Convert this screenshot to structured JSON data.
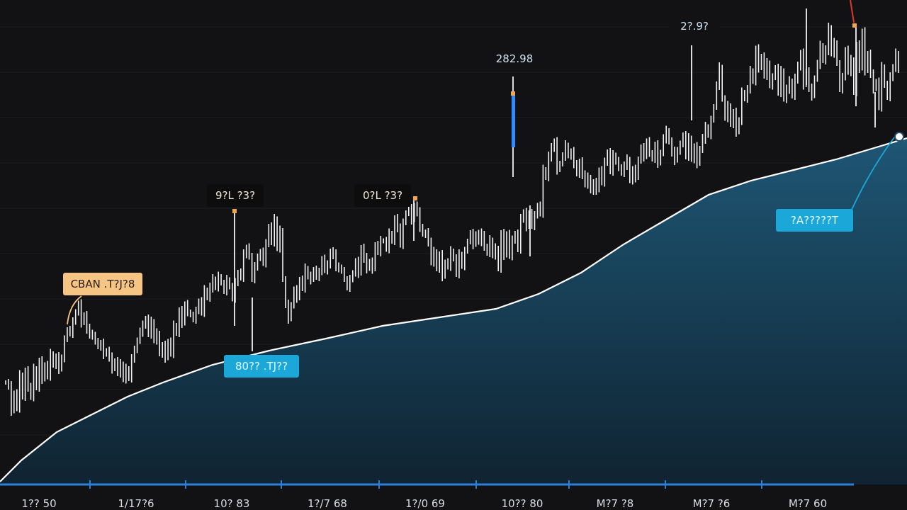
{
  "chart_data": {
    "type": "line",
    "title": "",
    "xlabel": "",
    "ylabel": "",
    "grid": true,
    "x_tick_labels": [
      "1?? 50",
      "1/17?6",
      "10? 83",
      "1?/7 68",
      "1?/0 69",
      "10?? 80",
      "M?7 ?8",
      "M?7 ?6",
      "M?7 60"
    ],
    "series": [
      {
        "role": "price-ticks",
        "color": "#f2f2f2",
        "values": [
          540,
          545,
          580,
          555,
          575,
          530,
          560,
          525,
          545,
          560,
          520,
          548,
          510,
          535,
          515,
          530,
          500,
          515,
          505,
          520,
          505,
          480,
          465,
          470,
          455,
          440,
          430,
          455,
          445,
          465,
          470,
          475,
          480,
          490,
          485,
          500,
          495,
          505,
          520,
          510,
          525,
          515,
          535,
          520,
          535,
          505,
          495,
          480,
          468,
          460,
          450,
          470,
          455,
          480,
          470,
          500,
          488,
          505,
          482,
          498,
          460,
          470,
          440,
          455,
          430,
          440,
          445,
          450,
          440,
          425,
          440,
          410,
          420,
          405,
          395,
          405,
          390,
          400,
          410,
          395,
          405,
          420,
          400,
          385,
          390,
          360,
          350,
          360,
          395,
          375,
          365,
          355,
          370,
          345,
          320,
          340,
          310,
          350,
          325,
          395,
          430,
          450,
          430,
          410,
          420,
          395,
          405,
          380,
          390,
          395,
          380,
          390,
          385,
          365,
          380,
          375,
          355,
          360,
          375,
          380,
          380,
          395,
          405,
          395,
          385,
          370,
          385,
          350,
          365,
          378,
          370,
          380,
          345,
          355,
          340,
          340,
          350,
          330,
          340,
          310,
          320,
          345,
          315,
          300,
          295,
          310,
          290,
          300,
          320,
          330,
          330,
          340,
          370,
          355,
          380,
          360,
          390,
          370,
          375,
          355,
          365,
          385,
          360,
          375,
          355,
          340,
          330,
          345,
          330,
          340,
          330,
          350,
          355,
          340,
          360,
          350,
          380,
          330,
          360,
          330,
          360,
          340,
          330,
          350,
          310,
          300,
          320,
          300,
          318,
          305,
          290,
          300,
          240,
          250,
          220,
          210,
          200,
          240,
          230,
          220,
          205,
          220,
          215,
          230,
          245,
          230,
          245,
          260,
          250,
          270,
          258,
          268,
          240,
          256,
          230,
          215,
          240,
          220,
          228,
          235,
          245,
          233,
          225,
          255,
          240,
          250,
          225,
          210,
          220,
          200,
          215,
          225,
          205,
          230,
          215,
          195,
          185,
          200,
          215,
          225,
          212,
          205,
          190,
          220,
          195,
          225,
          208,
          230,
          210,
          195,
          180,
          190,
          170,
          150,
          120,
          95,
          140,
          165,
          150,
          175,
          160,
          185,
          170,
          130,
          140,
          125,
          100,
          115,
          70,
          95,
          80,
          105,
          90,
          120,
          110,
          95,
          130,
          100,
          140,
          125,
          115,
          135,
          110,
          95,
          75,
          120,
          100,
          125,
          135,
          110,
          90,
          65,
          85,
          70,
          40,
          75,
          60,
          90,
          125,
          110,
          70,
          100,
          85,
          130,
          65,
          95,
          45,
          100,
          75,
          105,
          125,
          115,
          150,
          95,
          120,
          135,
          110,
          95,
          75,
          100
        ]
      },
      {
        "role": "moving-average",
        "color": "#ffffff",
        "fill": "#1b4e6b",
        "x": [
          0,
          30,
          80,
          130,
          180,
          230,
          300,
          380,
          460,
          540,
          620,
          700,
          760,
          820,
          880,
          940,
          1000,
          1060,
          1120,
          1180,
          1240,
          1280
        ],
        "values": [
          680,
          650,
          610,
          585,
          560,
          540,
          515,
          495,
          478,
          460,
          448,
          436,
          415,
          385,
          345,
          310,
          275,
          255,
          240,
          225,
          207,
          195
        ]
      }
    ],
    "annotations": [
      {
        "name": "callout-left",
        "text": "CBAN .T?J?8",
        "style": "orange"
      },
      {
        "name": "callout-peak-1",
        "text": "9?L ?3?",
        "style": "dark"
      },
      {
        "name": "callout-peak-2",
        "text": "0?L ?3?",
        "style": "dark"
      },
      {
        "name": "callout-peak-3",
        "text": "282.98",
        "style": "plain"
      },
      {
        "name": "callout-peak-4",
        "text": "2?.9?",
        "style": "plain"
      },
      {
        "name": "callout-low",
        "text": "80?? .TJ??",
        "style": "cyan"
      },
      {
        "name": "callout-right",
        "text": "?A?????T",
        "style": "cyan"
      }
    ]
  },
  "colors": {
    "background": "#121214",
    "grid": "#1f1f23",
    "axis": "#2e7fd6",
    "area": "#1b4e6b",
    "callout_orange": "#f6c584",
    "callout_cyan": "#1ba8d8",
    "callout_dark": "#0d0d0e",
    "highlight_blue": "#2f8cff",
    "marker_orange": "#f3a64a",
    "marker_red": "#e0352f"
  }
}
